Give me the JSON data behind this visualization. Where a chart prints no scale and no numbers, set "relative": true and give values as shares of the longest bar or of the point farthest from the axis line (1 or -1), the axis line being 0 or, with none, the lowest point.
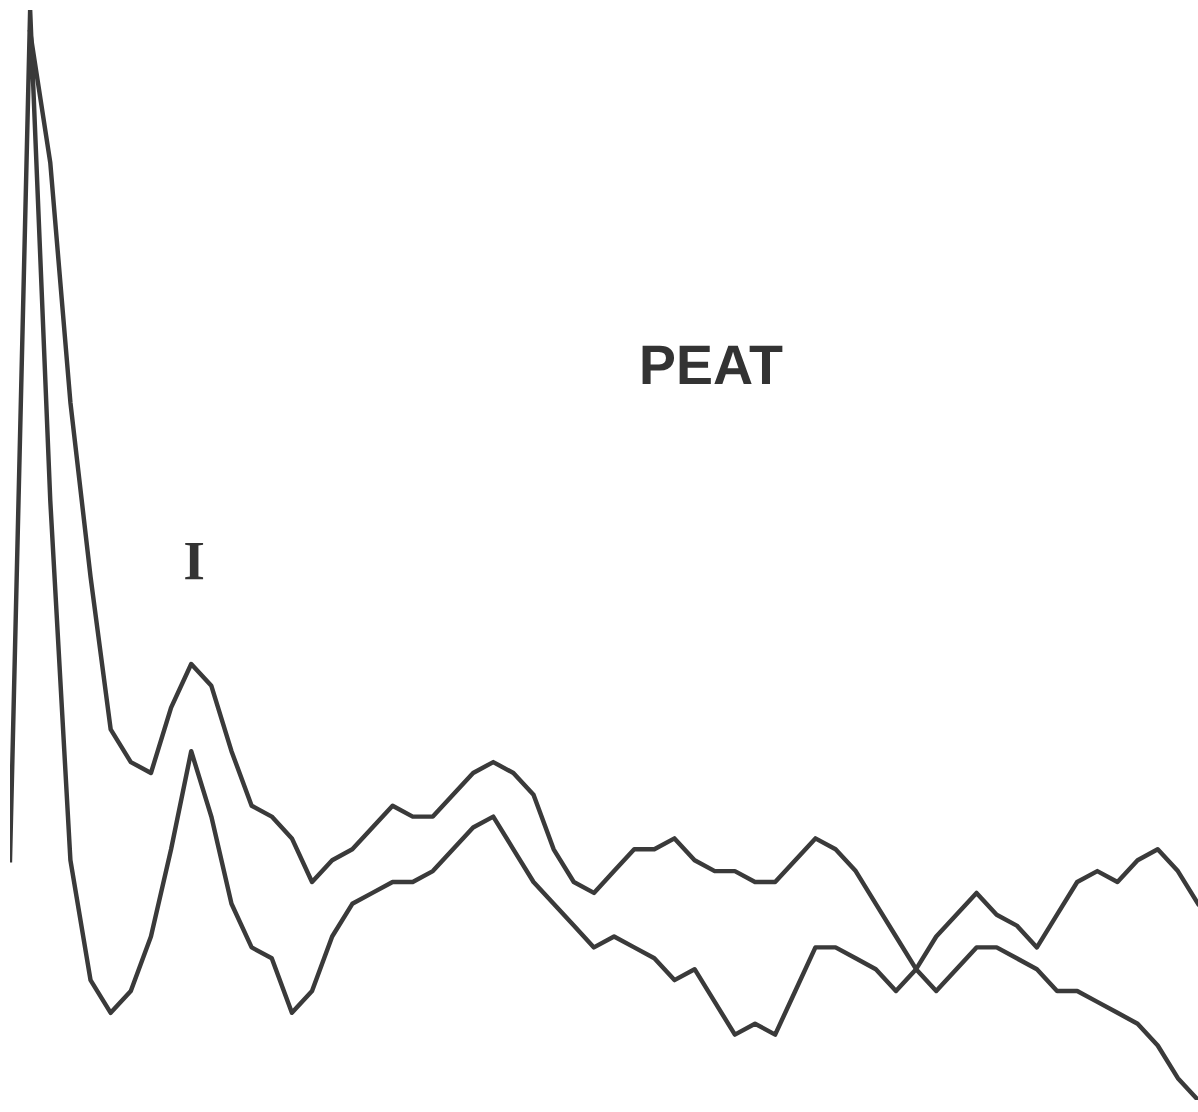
{
  "chart_data": {
    "type": "line",
    "relative": true,
    "title": "PEAT",
    "legend": false,
    "marker": "none",
    "line_style": "solid",
    "annotations": [
      "I"
    ],
    "categories": [
      null,
      null,
      null,
      null,
      null,
      null,
      null,
      null,
      null,
      null,
      null,
      null,
      null,
      null,
      null,
      null,
      null,
      null,
      null,
      null,
      null,
      null,
      null,
      null,
      null,
      null,
      null,
      null,
      null,
      null,
      null,
      null,
      null,
      null,
      null,
      null,
      null,
      null,
      null,
      null,
      null,
      null,
      null,
      null,
      null,
      null,
      null,
      null,
      null,
      null,
      null,
      null,
      null,
      null,
      null,
      null,
      null,
      null,
      null,
      null
    ],
    "series": [
      {
        "color": "#3a3a3a",
        "values": [
          null,
          0.98,
          0.86,
          0.64,
          0.48,
          0.34,
          0.31,
          0.3,
          0.36,
          0.4,
          0.38,
          0.32,
          0.27,
          0.26,
          0.24,
          0.2,
          0.22,
          0.23,
          0.25,
          0.27,
          0.26,
          0.26,
          0.28,
          0.3,
          0.31,
          0.3,
          0.28,
          0.23,
          0.2,
          0.19,
          0.21,
          0.23,
          0.23,
          0.24,
          0.22,
          0.21,
          0.21,
          0.2,
          0.2,
          0.22,
          0.24,
          0.23,
          0.21,
          0.18,
          0.15,
          0.12,
          0.1,
          0.12,
          0.14,
          0.14,
          0.13,
          0.12,
          0.1,
          0.1,
          0.09,
          0.08,
          0.07,
          0.05,
          0.02,
          0.0
        ]
      },
      {
        "color": "#3a3a3a",
        "values": [
          0.22,
          1.0,
          0.55,
          0.22,
          0.11,
          0.08,
          0.1,
          0.15,
          0.23,
          0.32,
          0.26,
          0.18,
          0.14,
          0.13,
          0.08,
          0.1,
          0.15,
          0.18,
          0.19,
          0.2,
          0.2,
          0.21,
          0.23,
          0.25,
          0.26,
          0.23,
          0.2,
          0.18,
          0.16,
          0.14,
          0.15,
          0.14,
          0.13,
          0.11,
          0.12,
          0.09,
          0.06,
          0.07,
          0.06,
          0.1,
          0.14,
          0.14,
          0.13,
          0.12,
          0.1,
          0.12,
          0.15,
          0.17,
          0.19,
          0.17,
          0.16,
          0.14,
          0.17,
          0.2,
          0.21,
          0.2,
          0.22,
          0.23,
          0.21,
          0.18
        ]
      }
    ]
  }
}
